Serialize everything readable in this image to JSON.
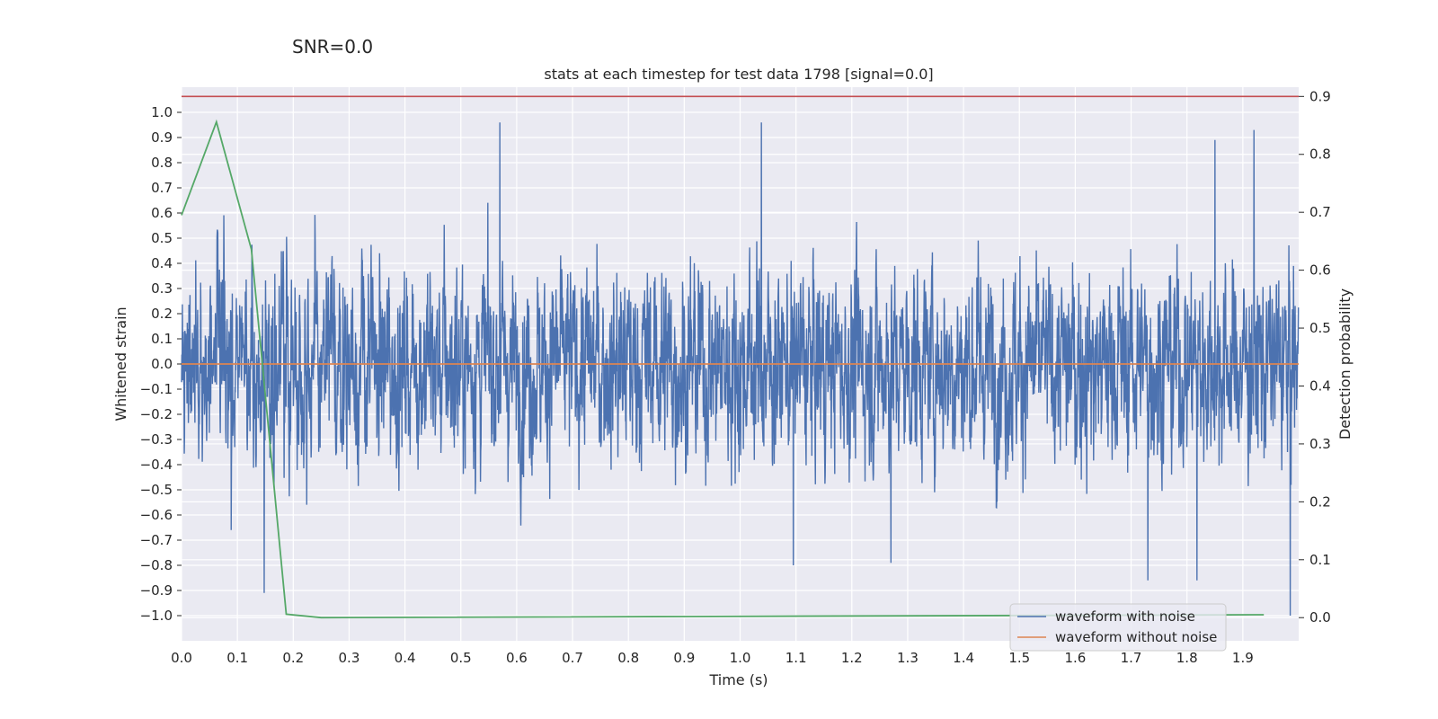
{
  "suptitle": "SNR=0.0",
  "chart_data": {
    "type": "line",
    "title": "stats at each timestep for test data 1798 [signal=0.0]",
    "xlabel": "Time (s)",
    "ylabel": "Whitened strain",
    "y2label": "Detection probability",
    "xlim": [
      0.0,
      2.0
    ],
    "ylim": [
      -1.1,
      1.1
    ],
    "y2lim": [
      -0.04,
      0.916
    ],
    "xticks": [
      "0.0",
      "0.1",
      "0.2",
      "0.3",
      "0.4",
      "0.5",
      "0.6",
      "0.7",
      "0.8",
      "0.9",
      "1.0",
      "1.1",
      "1.2",
      "1.3",
      "1.4",
      "1.5",
      "1.6",
      "1.7",
      "1.8",
      "1.9"
    ],
    "yticks": [
      "1.0",
      "0.9",
      "0.8",
      "0.7",
      "0.6",
      "0.5",
      "0.4",
      "0.3",
      "0.2",
      "0.1",
      "0.0",
      "-0.1",
      "-0.2",
      "-0.3",
      "-0.4",
      "-0.5",
      "-0.6",
      "-0.7",
      "-0.8",
      "-0.9",
      "-1.0"
    ],
    "y2ticks": [
      "0.9",
      "0.8",
      "0.7",
      "0.6",
      "0.5",
      "0.4",
      "0.3",
      "0.2",
      "0.1",
      "0.0"
    ],
    "grid": true,
    "legend_position": "bottom-right",
    "series": [
      {
        "name": "waveform with noise",
        "color": "#4c72b0",
        "axis": "left",
        "sample_rate": 2048,
        "approx_std": 0.3,
        "peaks": [
          {
            "x": 0.089,
            "y": -0.66
          },
          {
            "x": 0.148,
            "y": -0.91
          },
          {
            "x": 0.57,
            "y": 0.96
          },
          {
            "x": 1.038,
            "y": 0.96
          },
          {
            "x": 1.095,
            "y": -0.8
          },
          {
            "x": 1.27,
            "y": -0.79
          },
          {
            "x": 1.73,
            "y": -0.86
          },
          {
            "x": 1.818,
            "y": -0.86
          },
          {
            "x": 1.85,
            "y": 0.89
          },
          {
            "x": 1.92,
            "y": 0.93
          },
          {
            "x": 1.985,
            "y": -1.0
          }
        ]
      },
      {
        "name": "waveform without noise",
        "color": "#dd8452",
        "axis": "left",
        "x": [
          0.0,
          2.0
        ],
        "y": [
          0.0,
          0.0
        ]
      },
      {
        "name": "",
        "color": "#55a868",
        "axis": "right",
        "x": [
          0.0,
          0.0625,
          0.125,
          0.1875,
          0.25,
          1.9375
        ],
        "y": [
          0.695,
          0.856,
          0.636,
          0.006,
          0.0,
          0.005
        ]
      }
    ],
    "threshold": {
      "axis": "right",
      "value": 0.9,
      "color": "#c44e52"
    }
  }
}
